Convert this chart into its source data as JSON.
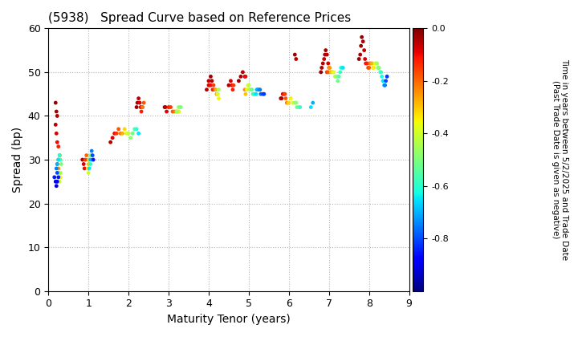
{
  "title": "(5938)   Spread Curve based on Reference Prices",
  "xlabel": "Maturity Tenor (years)",
  "ylabel": "Spread (bp)",
  "colorbar_label": "Time in years between 5/2/2025 and Trade Date\n(Past Trade Date is given as negative)",
  "xlim": [
    0,
    9
  ],
  "ylim": [
    0,
    60
  ],
  "xticks": [
    0,
    1,
    2,
    3,
    4,
    5,
    6,
    7,
    8,
    9
  ],
  "yticks": [
    0,
    10,
    20,
    30,
    40,
    50,
    60
  ],
  "cmap": "jet",
  "clim": [
    -1.0,
    0.0
  ],
  "background": "#ffffff",
  "point_size": 12,
  "points": [
    [
      0.18,
      43,
      -0.02
    ],
    [
      0.2,
      41,
      -0.03
    ],
    [
      0.22,
      40,
      -0.04
    ],
    [
      0.18,
      38,
      -0.05
    ],
    [
      0.2,
      36,
      -0.08
    ],
    [
      0.22,
      34,
      -0.1
    ],
    [
      0.25,
      33,
      -0.12
    ],
    [
      0.28,
      31,
      -0.15
    ],
    [
      0.25,
      30,
      -0.18
    ],
    [
      0.22,
      29,
      -0.2
    ],
    [
      0.25,
      28,
      -0.25
    ],
    [
      0.28,
      27,
      -0.3
    ],
    [
      0.3,
      26,
      -0.35
    ],
    [
      0.28,
      25,
      -0.4
    ],
    [
      0.3,
      27,
      -0.45
    ],
    [
      0.32,
      29,
      -0.5
    ],
    [
      0.3,
      30,
      -0.55
    ],
    [
      0.28,
      31,
      -0.6
    ],
    [
      0.25,
      30,
      -0.65
    ],
    [
      0.22,
      29,
      -0.7
    ],
    [
      0.2,
      28,
      -0.75
    ],
    [
      0.22,
      27,
      -0.8
    ],
    [
      0.25,
      26,
      -0.85
    ],
    [
      0.22,
      25,
      -0.9
    ],
    [
      0.2,
      24,
      -0.92
    ],
    [
      0.18,
      25,
      -0.88
    ],
    [
      0.15,
      26,
      -0.85
    ],
    [
      0.85,
      30,
      -0.05
    ],
    [
      0.88,
      29,
      -0.08
    ],
    [
      0.9,
      28,
      -0.1
    ],
    [
      0.92,
      30,
      -0.15
    ],
    [
      0.95,
      31,
      -0.2
    ],
    [
      1.0,
      30,
      -0.25
    ],
    [
      1.0,
      29,
      -0.3
    ],
    [
      0.98,
      28,
      -0.35
    ],
    [
      1.0,
      27,
      -0.4
    ],
    [
      1.02,
      30,
      -0.45
    ],
    [
      1.05,
      31,
      -0.5
    ],
    [
      1.08,
      30,
      -0.55
    ],
    [
      1.05,
      29,
      -0.6
    ],
    [
      1.02,
      28,
      -0.65
    ],
    [
      1.05,
      30,
      -0.7
    ],
    [
      1.08,
      32,
      -0.75
    ],
    [
      1.1,
      31,
      -0.8
    ],
    [
      1.12,
      30,
      -0.85
    ],
    [
      1.55,
      34,
      -0.05
    ],
    [
      1.6,
      35,
      -0.08
    ],
    [
      1.65,
      36,
      -0.1
    ],
    [
      1.7,
      36,
      -0.15
    ],
    [
      1.75,
      37,
      -0.18
    ],
    [
      1.8,
      36,
      -0.22
    ],
    [
      1.85,
      36,
      -0.28
    ],
    [
      1.9,
      37,
      -0.32
    ],
    [
      1.95,
      36,
      -0.38
    ],
    [
      2.0,
      36,
      -0.42
    ],
    [
      2.05,
      35,
      -0.48
    ],
    [
      2.1,
      36,
      -0.52
    ],
    [
      2.15,
      37,
      -0.55
    ],
    [
      2.2,
      37,
      -0.6
    ],
    [
      2.25,
      36,
      -0.65
    ],
    [
      2.2,
      42,
      -0.02
    ],
    [
      2.22,
      43,
      -0.04
    ],
    [
      2.25,
      44,
      -0.06
    ],
    [
      2.28,
      43,
      -0.08
    ],
    [
      2.3,
      42,
      -0.1
    ],
    [
      2.32,
      41,
      -0.12
    ],
    [
      2.35,
      42,
      -0.15
    ],
    [
      2.38,
      43,
      -0.18
    ],
    [
      2.35,
      42,
      -0.22
    ],
    [
      2.9,
      42,
      -0.02
    ],
    [
      2.92,
      42,
      -0.05
    ],
    [
      2.95,
      41,
      -0.08
    ],
    [
      3.0,
      42,
      -0.12
    ],
    [
      3.05,
      42,
      -0.15
    ],
    [
      3.1,
      41,
      -0.18
    ],
    [
      3.15,
      41,
      -0.22
    ],
    [
      3.2,
      41,
      -0.25
    ],
    [
      3.25,
      41,
      -0.3
    ],
    [
      3.3,
      42,
      -0.35
    ],
    [
      3.25,
      41,
      -0.4
    ],
    [
      3.2,
      41,
      -0.45
    ],
    [
      3.25,
      42,
      -0.48
    ],
    [
      3.3,
      42,
      -0.5
    ],
    [
      3.95,
      46,
      -0.05
    ],
    [
      4.0,
      47,
      -0.08
    ],
    [
      4.05,
      47,
      -0.1
    ],
    [
      4.1,
      46,
      -0.12
    ],
    [
      4.08,
      48,
      -0.05
    ],
    [
      4.05,
      49,
      -0.03
    ],
    [
      4.0,
      48,
      -0.06
    ],
    [
      4.12,
      47,
      -0.15
    ],
    [
      4.15,
      46,
      -0.18
    ],
    [
      4.2,
      45,
      -0.22
    ],
    [
      4.18,
      46,
      -0.28
    ],
    [
      4.22,
      45,
      -0.32
    ],
    [
      4.25,
      44,
      -0.35
    ],
    [
      4.22,
      45,
      -0.4
    ],
    [
      4.25,
      46,
      -0.45
    ],
    [
      4.5,
      47,
      -0.05
    ],
    [
      4.55,
      48,
      -0.08
    ],
    [
      4.58,
      47,
      -0.1
    ],
    [
      4.6,
      46,
      -0.12
    ],
    [
      4.62,
      47,
      -0.15
    ],
    [
      4.75,
      48,
      -0.02
    ],
    [
      4.8,
      49,
      -0.04
    ],
    [
      4.85,
      50,
      -0.05
    ],
    [
      4.9,
      49,
      -0.08
    ],
    [
      4.92,
      49,
      -0.1
    ],
    [
      4.9,
      46,
      -0.25
    ],
    [
      4.92,
      45,
      -0.3
    ],
    [
      4.95,
      46,
      -0.35
    ],
    [
      4.98,
      47,
      -0.38
    ],
    [
      5.0,
      47,
      -0.42
    ],
    [
      5.02,
      46,
      -0.45
    ],
    [
      5.05,
      46,
      -0.48
    ],
    [
      5.08,
      46,
      -0.52
    ],
    [
      5.1,
      45,
      -0.55
    ],
    [
      5.12,
      45,
      -0.58
    ],
    [
      5.15,
      45,
      -0.62
    ],
    [
      5.18,
      45,
      -0.65
    ],
    [
      5.2,
      46,
      -0.68
    ],
    [
      5.22,
      46,
      -0.7
    ],
    [
      5.25,
      46,
      -0.72
    ],
    [
      5.28,
      46,
      -0.75
    ],
    [
      5.3,
      45,
      -0.78
    ],
    [
      5.35,
      45,
      -0.8
    ],
    [
      5.38,
      45,
      -0.82
    ],
    [
      5.8,
      44,
      -0.02
    ],
    [
      5.82,
      44,
      -0.05
    ],
    [
      5.85,
      45,
      -0.08
    ],
    [
      5.88,
      45,
      -0.12
    ],
    [
      5.9,
      45,
      -0.15
    ],
    [
      5.92,
      44,
      -0.18
    ],
    [
      5.95,
      43,
      -0.22
    ],
    [
      5.98,
      43,
      -0.28
    ],
    [
      6.0,
      43,
      -0.32
    ],
    [
      6.05,
      44,
      -0.35
    ],
    [
      6.1,
      43,
      -0.4
    ],
    [
      6.15,
      43,
      -0.45
    ],
    [
      6.15,
      54,
      -0.03
    ],
    [
      6.18,
      53,
      -0.05
    ],
    [
      6.18,
      43,
      -0.48
    ],
    [
      6.2,
      42,
      -0.52
    ],
    [
      6.25,
      42,
      -0.55
    ],
    [
      6.28,
      42,
      -0.58
    ],
    [
      6.55,
      42,
      -0.65
    ],
    [
      6.6,
      43,
      -0.7
    ],
    [
      6.8,
      50,
      -0.02
    ],
    [
      6.82,
      51,
      -0.04
    ],
    [
      6.85,
      52,
      -0.05
    ],
    [
      6.88,
      53,
      -0.06
    ],
    [
      6.9,
      54,
      -0.04
    ],
    [
      6.92,
      55,
      -0.03
    ],
    [
      6.95,
      54,
      -0.05
    ],
    [
      6.98,
      52,
      -0.08
    ],
    [
      6.95,
      50,
      -0.15
    ],
    [
      6.98,
      50,
      -0.18
    ],
    [
      7.0,
      51,
      -0.22
    ],
    [
      7.02,
      51,
      -0.25
    ],
    [
      7.05,
      50,
      -0.28
    ],
    [
      7.08,
      50,
      -0.3
    ],
    [
      7.1,
      50,
      -0.35
    ],
    [
      7.12,
      50,
      -0.38
    ],
    [
      7.15,
      49,
      -0.42
    ],
    [
      7.18,
      49,
      -0.45
    ],
    [
      7.2,
      49,
      -0.48
    ],
    [
      7.22,
      48,
      -0.52
    ],
    [
      7.25,
      49,
      -0.55
    ],
    [
      7.28,
      50,
      -0.58
    ],
    [
      7.3,
      51,
      -0.62
    ],
    [
      7.35,
      51,
      -0.65
    ],
    [
      7.75,
      53,
      -0.02
    ],
    [
      7.78,
      54,
      -0.04
    ],
    [
      7.8,
      56,
      -0.03
    ],
    [
      7.82,
      58,
      -0.02
    ],
    [
      7.85,
      57,
      -0.04
    ],
    [
      7.88,
      55,
      -0.06
    ],
    [
      7.9,
      53,
      -0.08
    ],
    [
      7.92,
      52,
      -0.1
    ],
    [
      7.95,
      52,
      -0.12
    ],
    [
      7.98,
      51,
      -0.15
    ],
    [
      8.0,
      51,
      -0.18
    ],
    [
      8.02,
      52,
      -0.2
    ],
    [
      8.05,
      52,
      -0.25
    ],
    [
      8.08,
      52,
      -0.28
    ],
    [
      8.1,
      51,
      -0.32
    ],
    [
      8.12,
      51,
      -0.35
    ],
    [
      8.15,
      52,
      -0.38
    ],
    [
      8.18,
      52,
      -0.42
    ],
    [
      8.2,
      52,
      -0.45
    ],
    [
      8.22,
      51,
      -0.48
    ],
    [
      8.25,
      51,
      -0.5
    ],
    [
      8.28,
      50,
      -0.55
    ],
    [
      8.3,
      50,
      -0.58
    ],
    [
      8.32,
      49,
      -0.62
    ],
    [
      8.35,
      48,
      -0.65
    ],
    [
      8.38,
      47,
      -0.7
    ],
    [
      8.4,
      47,
      -0.75
    ],
    [
      8.42,
      48,
      -0.8
    ],
    [
      8.45,
      49,
      -0.82
    ]
  ]
}
